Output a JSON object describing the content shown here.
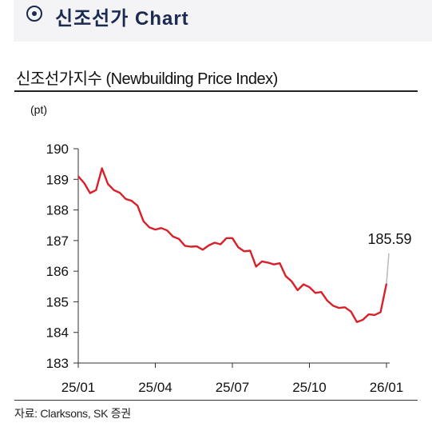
{
  "banner": {
    "icon": "target-circle-icon",
    "text": "신조선가 Chart"
  },
  "chart_title": "신조선가지수 (Newbuilding Price Index)",
  "source": "자료: Clarksons, SK 증권",
  "colors": {
    "line": "#d9202a",
    "leader": "#bbbbbb",
    "banner_text": "#1a2a52"
  },
  "chart_data": {
    "type": "line",
    "title": "신조선가지수 (Newbuilding Price Index)",
    "unit": "(pt)",
    "ylim": [
      183,
      190
    ],
    "yticks": [
      "190",
      "189",
      "188",
      "187",
      "186",
      "185",
      "184",
      "183"
    ],
    "xticks": [
      "25/01",
      "25/04",
      "25/07",
      "25/10",
      "26/01"
    ],
    "grid": false,
    "annotation": {
      "label": "185.59",
      "value": 185.59
    },
    "series": [
      {
        "values": [
          189.1,
          188.88,
          188.55,
          188.65,
          189.36,
          188.85,
          188.65,
          188.56,
          188.36,
          188.3,
          188.14,
          187.63,
          187.43,
          187.36,
          187.41,
          187.33,
          187.13,
          187.05,
          186.83,
          186.8,
          186.81,
          186.7,
          186.84,
          186.93,
          186.88,
          187.08,
          187.08,
          186.78,
          186.65,
          186.67,
          186.15,
          186.32,
          186.28,
          186.22,
          186.26,
          185.84,
          185.67,
          185.38,
          185.57,
          185.48,
          185.29,
          185.32,
          185.04,
          184.87,
          184.8,
          184.82,
          184.68,
          184.34,
          184.41,
          184.59,
          184.57,
          184.66,
          185.59
        ]
      }
    ]
  }
}
